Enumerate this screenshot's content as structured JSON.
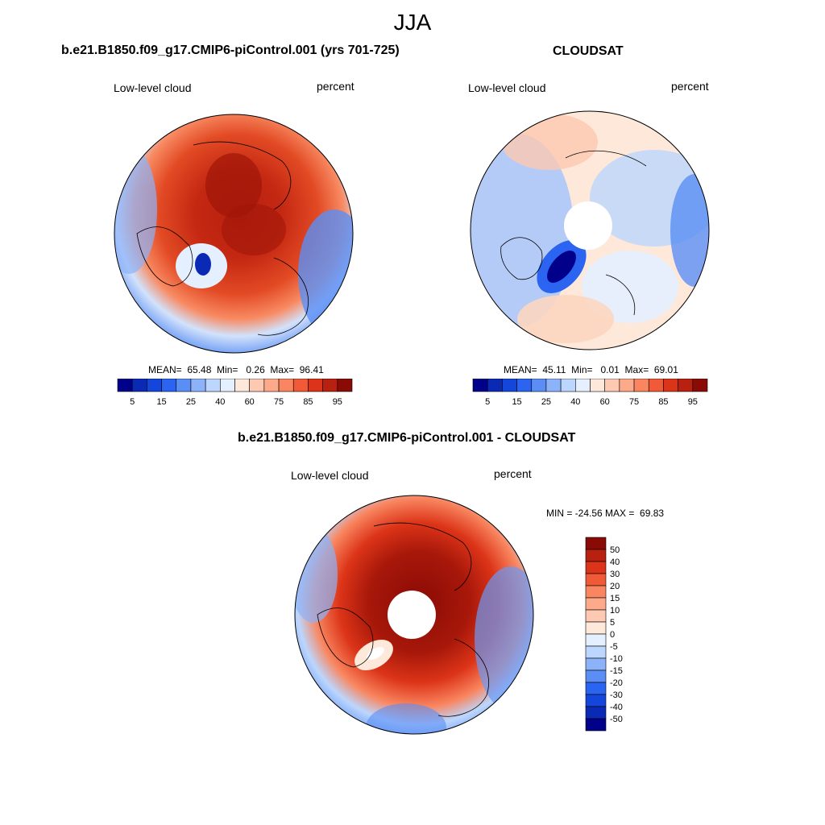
{
  "figure": {
    "title": "JJA"
  },
  "panels": [
    {
      "title": "b.e21.B1850.f09_g17.CMIP6-piControl.001 (yrs 701-725)",
      "left_label": "Low-level cloud",
      "right_label": "percent",
      "stats": "MEAN=  65.48  Min=   0.26  Max=  96.41"
    },
    {
      "title": "CLOUDSAT",
      "left_label": "Low-level cloud",
      "right_label": "percent",
      "stats": "MEAN=  45.11  Min=   0.01  Max=  69.01"
    },
    {
      "title": "b.e21.B1850.f09_g17.CMIP6-piControl.001 - CLOUDSAT",
      "left_label": "Low-level cloud",
      "right_label": "percent",
      "stats": "MIN = -24.56 MAX =  69.83"
    }
  ],
  "colorbar_abs": {
    "colors": [
      "#00008a",
      "#0a2ab6",
      "#1546dc",
      "#2a64f0",
      "#5a8ef5",
      "#8cb2fa",
      "#bcd6fd",
      "#e4f0ff",
      "#fde8da",
      "#fdc9b2",
      "#fcaa8a",
      "#f98660",
      "#f05a36",
      "#dc3418",
      "#b82010",
      "#8a0a05"
    ],
    "labels": [
      "5",
      "15",
      "25",
      "40",
      "60",
      "75",
      "85",
      "95"
    ]
  },
  "colorbar_diff": {
    "colors": [
      "#8a0a05",
      "#b82010",
      "#dc3418",
      "#f05a36",
      "#f98660",
      "#fcaa8a",
      "#fdc9b2",
      "#fde8da",
      "#e4f0ff",
      "#bcd6fd",
      "#8cb2fa",
      "#5a8ef5",
      "#2a64f0",
      "#1546dc",
      "#0a2ab6",
      "#00008a"
    ],
    "labels": [
      "50",
      "40",
      "30",
      "20",
      "15",
      "10",
      "5",
      "0",
      "-5",
      "-10",
      "-15",
      "-20",
      "-30",
      "-40",
      "-50"
    ]
  }
}
